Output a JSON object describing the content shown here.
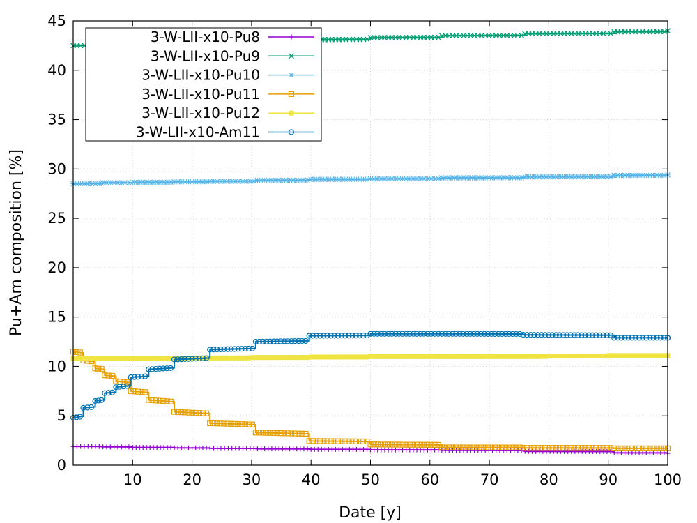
{
  "chart_data": {
    "type": "line",
    "xlabel": "Date [y]",
    "ylabel": "Pu+Am composition [%]",
    "xlim": [
      0,
      100
    ],
    "ylim": [
      0,
      45
    ],
    "xticks": [
      10,
      20,
      30,
      40,
      50,
      60,
      70,
      80,
      90,
      100
    ],
    "yticks": [
      0,
      5,
      10,
      15,
      20,
      25,
      30,
      35,
      40,
      45
    ],
    "grid": true,
    "legend_position": "top-left",
    "series": [
      {
        "name": "3-W-LII-x10-Pu8",
        "color": "#9400d3",
        "marker": "plus",
        "x": [
          0,
          5,
          10,
          17,
          23,
          31,
          40,
          50,
          62,
          76,
          91,
          100
        ],
        "y": [
          1.9,
          1.85,
          1.8,
          1.75,
          1.7,
          1.65,
          1.6,
          1.55,
          1.5,
          1.4,
          1.25,
          1.2
        ]
      },
      {
        "name": "3-W-LII-x10-Pu9",
        "color": "#009e73",
        "marker": "cross",
        "x": [
          0,
          5,
          10,
          17,
          23,
          31,
          40,
          50,
          62,
          76,
          91,
          100
        ],
        "y": [
          42.5,
          42.6,
          42.7,
          42.8,
          42.9,
          43.0,
          43.1,
          43.3,
          43.5,
          43.7,
          43.9,
          44.0
        ]
      },
      {
        "name": "3-W-LII-x10-Pu10",
        "color": "#56b4e9",
        "marker": "star",
        "x": [
          0,
          5,
          10,
          17,
          23,
          31,
          40,
          50,
          62,
          76,
          91,
          100
        ],
        "y": [
          28.5,
          28.6,
          28.65,
          28.7,
          28.75,
          28.85,
          28.95,
          29.0,
          29.1,
          29.2,
          29.35,
          29.4
        ]
      },
      {
        "name": "3-W-LII-x10-Pu11",
        "color": "#e69f00",
        "marker": "open-square",
        "x": [
          0,
          1.7,
          3.7,
          5.3,
          7.2,
          9.7,
          12.7,
          17.0,
          23.0,
          30.7,
          39.7,
          50.0,
          62.0,
          75.7,
          91.0,
          100
        ],
        "y": [
          11.5,
          10.6,
          9.8,
          9.1,
          8.5,
          7.5,
          6.6,
          5.4,
          4.25,
          3.3,
          2.45,
          2.1,
          1.8,
          1.75,
          1.7,
          1.7
        ]
      },
      {
        "name": "3-W-LII-x10-Pu12",
        "color": "#f0e442",
        "marker": "filled-square",
        "x": [
          0,
          10,
          20,
          30,
          40,
          50,
          60,
          70,
          80,
          90,
          100
        ],
        "y": [
          10.8,
          10.8,
          10.85,
          10.9,
          10.95,
          11.0,
          11.0,
          11.0,
          11.05,
          11.1,
          11.1
        ]
      },
      {
        "name": "3-W-LII-x10-Am11",
        "color": "#0072b2",
        "marker": "open-circle",
        "x": [
          0,
          1.7,
          3.7,
          5.3,
          7.2,
          9.7,
          12.7,
          17.0,
          23.0,
          30.7,
          39.7,
          50.0,
          62.0,
          75.7,
          91.0,
          100
        ],
        "y": [
          4.8,
          5.8,
          6.5,
          7.3,
          7.9,
          8.9,
          9.7,
          10.7,
          11.7,
          12.5,
          13.1,
          13.3,
          13.3,
          13.2,
          12.9,
          12.9
        ]
      }
    ]
  }
}
